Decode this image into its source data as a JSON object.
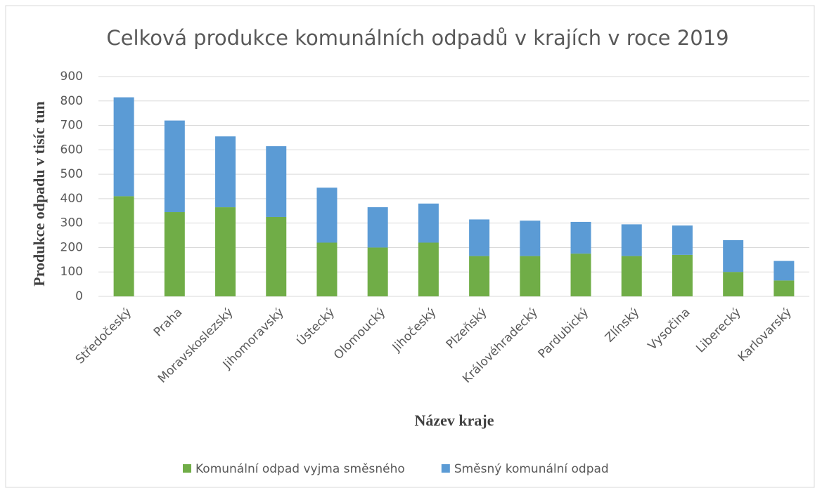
{
  "chart_data": {
    "type": "stacked_bar",
    "title": "Celková produkce komunálních odpadů v krajích v roce 2019",
    "x_label": "Název kraje",
    "y_label": "Produkce odpadu v tisíc tun",
    "categories": [
      "Středočeský",
      "Praha",
      "Moravskoslezský",
      "Jihomoravský",
      "Ústecký",
      "Olomoucký",
      "Jihočeský",
      "Plzeňský",
      "Královéhradecký",
      "Pardubický",
      "Zlínský",
      "Vysočina",
      "Liberecký",
      "Karlovarský"
    ],
    "series": [
      {
        "name": "Komunální odpad vyjma směsného",
        "color": "#70ad47",
        "values": [
          410,
          345,
          365,
          325,
          220,
          200,
          220,
          165,
          165,
          175,
          165,
          170,
          100,
          65
        ]
      },
      {
        "name": "Směsný komunální odpad",
        "color": "#5b9bd5",
        "values": [
          405,
          375,
          290,
          290,
          225,
          165,
          160,
          150,
          145,
          130,
          130,
          120,
          130,
          80
        ]
      }
    ],
    "ylim": [
      0,
      900
    ],
    "yticks": [
      0,
      100,
      200,
      300,
      400,
      500,
      600,
      700,
      800,
      900
    ],
    "grid": true,
    "legend": "bottom"
  }
}
